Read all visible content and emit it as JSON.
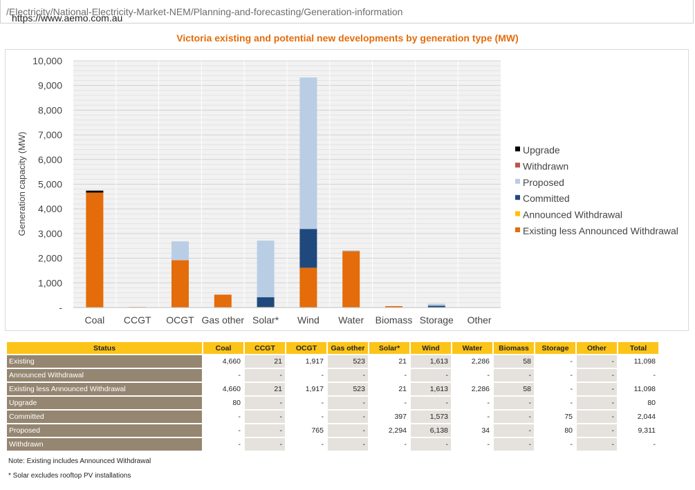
{
  "browser": {
    "url_host": "https://www.aemo.com.au",
    "url_path": "/Electricity/National-Electricity-Market-NEM/Planning-and-forecasting/Generation-information"
  },
  "chart_data": {
    "type": "bar",
    "stacked": true,
    "title": "Victoria existing and potential new developments by generation type (MW)",
    "xlabel": "",
    "ylabel": "Generation capacity (MW)",
    "ylim": [
      0,
      10000
    ],
    "yticks": [
      0,
      1000,
      2000,
      3000,
      4000,
      5000,
      6000,
      7000,
      8000,
      9000,
      10000
    ],
    "ytick_labels": [
      "-",
      "1,000",
      "2,000",
      "3,000",
      "4,000",
      "5,000",
      "6,000",
      "7,000",
      "8,000",
      "9,000",
      "10,000"
    ],
    "categories": [
      "Coal",
      "CCGT",
      "OCGT",
      "Gas other",
      "Solar*",
      "Wind",
      "Water",
      "Biomass",
      "Storage",
      "Other"
    ],
    "grid": true,
    "legend_position": "right",
    "series": [
      {
        "name": "Existing less Announced Withdrawal",
        "color": "#e46c0a",
        "values": [
          4660,
          21,
          1917,
          523,
          21,
          1613,
          2286,
          58,
          0,
          0
        ]
      },
      {
        "name": "Announced Withdrawal",
        "color": "#ffc000",
        "values": [
          0,
          0,
          0,
          0,
          0,
          0,
          0,
          0,
          0,
          0
        ]
      },
      {
        "name": "Committed",
        "color": "#1f497d",
        "values": [
          0,
          0,
          0,
          0,
          397,
          1573,
          0,
          0,
          75,
          0
        ]
      },
      {
        "name": "Proposed",
        "color": "#b9cde5",
        "values": [
          0,
          0,
          765,
          0,
          2294,
          6138,
          34,
          0,
          80,
          0
        ]
      },
      {
        "name": "Withdrawn",
        "color": "#c0504d",
        "values": [
          0,
          0,
          0,
          0,
          0,
          0,
          0,
          0,
          0,
          0
        ]
      },
      {
        "name": "Upgrade",
        "color": "#000000",
        "values": [
          80,
          0,
          0,
          0,
          0,
          0,
          0,
          0,
          0,
          0
        ]
      }
    ],
    "legend_order": [
      "Upgrade",
      "Withdrawn",
      "Proposed",
      "Committed",
      "Announced Withdrawal",
      "Existing less Announced Withdrawal"
    ]
  },
  "table": {
    "header": [
      "Status",
      "Coal",
      "CCGT",
      "OCGT",
      "Gas other",
      "Solar*",
      "Wind",
      "Water",
      "Biomass",
      "Storage",
      "Other",
      "Total"
    ],
    "rows": [
      [
        "Existing",
        "4,660",
        "21",
        "1,917",
        "523",
        "21",
        "1,613",
        "2,286",
        "58",
        "-",
        "-",
        "11,098"
      ],
      [
        "Announced Withdrawal",
        "-",
        "-",
        "-",
        "-",
        "-",
        "-",
        "-",
        "-",
        "-",
        "-",
        "-"
      ],
      [
        "Existing less Announced Withdrawal",
        "4,660",
        "21",
        "1,917",
        "523",
        "21",
        "1,613",
        "2,286",
        "58",
        "-",
        "-",
        "11,098"
      ],
      [
        "Upgrade",
        "80",
        "-",
        "-",
        "-",
        "-",
        "-",
        "-",
        "-",
        "-",
        "-",
        "80"
      ],
      [
        "Committed",
        "-",
        "-",
        "-",
        "-",
        "397",
        "1,573",
        "-",
        "-",
        "75",
        "-",
        "2,044"
      ],
      [
        "Proposed",
        "-",
        "-",
        "765",
        "-",
        "2,294",
        "6,138",
        "34",
        "-",
        "80",
        "-",
        "9,311"
      ],
      [
        "Withdrawn",
        "-",
        "-",
        "-",
        "-",
        "-",
        "-",
        "-",
        "-",
        "-",
        "-",
        "-"
      ]
    ]
  },
  "notes": [
    "Note: Existing includes Announced Withdrawal",
    "* Solar excludes rooftop PV installations"
  ]
}
